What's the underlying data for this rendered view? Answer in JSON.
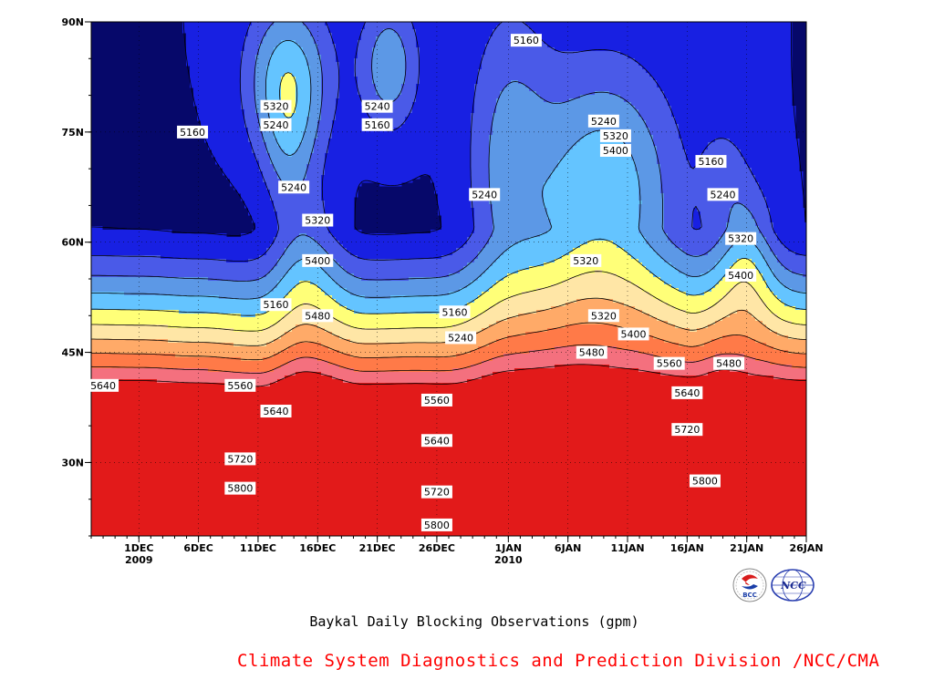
{
  "chart_data": {
    "type": "heatmap",
    "title": "Baykal Daily Blocking Observations (gpm)",
    "x": {
      "start": "2009-11-27",
      "end": "2010-01-26",
      "tick_labels": [
        "1DEC",
        "6DEC",
        "11DEC",
        "16DEC",
        "21DEC",
        "26DEC",
        "1JAN",
        "6JAN",
        "11JAN",
        "16JAN",
        "21JAN",
        "26JAN"
      ],
      "tick_days": [
        4,
        9,
        14,
        19,
        24,
        29,
        35,
        40,
        45,
        50,
        55,
        60
      ],
      "year_labels": [
        {
          "text": "2009",
          "day": 4
        },
        {
          "text": "2010",
          "day": 35
        }
      ]
    },
    "y": {
      "range": [
        20,
        90
      ],
      "tick_labels": [
        "30N",
        "45N",
        "60N",
        "75N",
        "90N"
      ],
      "tick_values": [
        30,
        45,
        60,
        75,
        90
      ]
    },
    "levels": [
      5160,
      5240,
      5320,
      5400,
      5480,
      5560,
      5640,
      5720,
      5800,
      5880
    ],
    "level_colors": [
      "#06086a",
      "#1820e2",
      "#4a5ae8",
      "#5c98e6",
      "#64c4ff",
      "#ffff78",
      "#ffe6a6",
      "#ffaa68",
      "#ff7a48",
      "#f4707e",
      "#e21a1a"
    ],
    "grid": true,
    "labels": [
      {
        "text": "5160",
        "day": 30.5,
        "lat": 50.5
      },
      {
        "text": "5160",
        "day": 15.5,
        "lat": 51.5
      },
      {
        "text": "5160",
        "day": 8.5,
        "lat": 75
      },
      {
        "text": "5160",
        "day": 24,
        "lat": 76
      },
      {
        "text": "5160",
        "day": 36.5,
        "lat": 87.5
      },
      {
        "text": "5160",
        "day": 52,
        "lat": 71
      },
      {
        "text": "5240",
        "day": 15.5,
        "lat": 76
      },
      {
        "text": "5240",
        "day": 24,
        "lat": 78.5
      },
      {
        "text": "5240",
        "day": 17,
        "lat": 67.5
      },
      {
        "text": "5240",
        "day": 33,
        "lat": 66.5
      },
      {
        "text": "5240",
        "day": 31,
        "lat": 47
      },
      {
        "text": "5240",
        "day": 43,
        "lat": 76.5
      },
      {
        "text": "5240",
        "day": 53,
        "lat": 66.5
      },
      {
        "text": "5320",
        "day": 15.5,
        "lat": 78.5
      },
      {
        "text": "5320",
        "day": 19,
        "lat": 63
      },
      {
        "text": "5320",
        "day": 44,
        "lat": 74.5
      },
      {
        "text": "5320",
        "day": 41.5,
        "lat": 57.5
      },
      {
        "text": "5320",
        "day": 43,
        "lat": 50
      },
      {
        "text": "5320",
        "day": 54.5,
        "lat": 60.5
      },
      {
        "text": "5400",
        "day": 44,
        "lat": 72.5
      },
      {
        "text": "5400",
        "day": 19,
        "lat": 57.5
      },
      {
        "text": "5400",
        "day": 45.5,
        "lat": 47.5
      },
      {
        "text": "5400",
        "day": 54.5,
        "lat": 55.5
      },
      {
        "text": "5480",
        "day": 19,
        "lat": 50
      },
      {
        "text": "5480",
        "day": 42,
        "lat": 45
      },
      {
        "text": "5480",
        "day": 53.5,
        "lat": 43.5
      },
      {
        "text": "5560",
        "day": 12.5,
        "lat": 40.5
      },
      {
        "text": "5560",
        "day": 29,
        "lat": 38.5
      },
      {
        "text": "5560",
        "day": 48.5,
        "lat": 43.5
      },
      {
        "text": "5640",
        "day": 1,
        "lat": 40.5
      },
      {
        "text": "5640",
        "day": 15.5,
        "lat": 37
      },
      {
        "text": "5640",
        "day": 29,
        "lat": 33
      },
      {
        "text": "5640",
        "day": 50,
        "lat": 39.5
      },
      {
        "text": "5720",
        "day": 12.5,
        "lat": 30.5
      },
      {
        "text": "5720",
        "day": 29,
        "lat": 26
      },
      {
        "text": "5720",
        "day": 50,
        "lat": 34.5
      },
      {
        "text": "5800",
        "day": 12.5,
        "lat": 26.5
      },
      {
        "text": "5800",
        "day": 29,
        "lat": 21.5
      },
      {
        "text": "5800",
        "day": 51.5,
        "lat": 27.5
      }
    ]
  },
  "footer": {
    "subtitle": "Baykal Daily Blocking Observations (gpm)",
    "credit": "Climate System Diagnostics and Prediction Division /NCC/CMA",
    "logo_left_text": "BCC",
    "logo_right_text": "NCC"
  }
}
